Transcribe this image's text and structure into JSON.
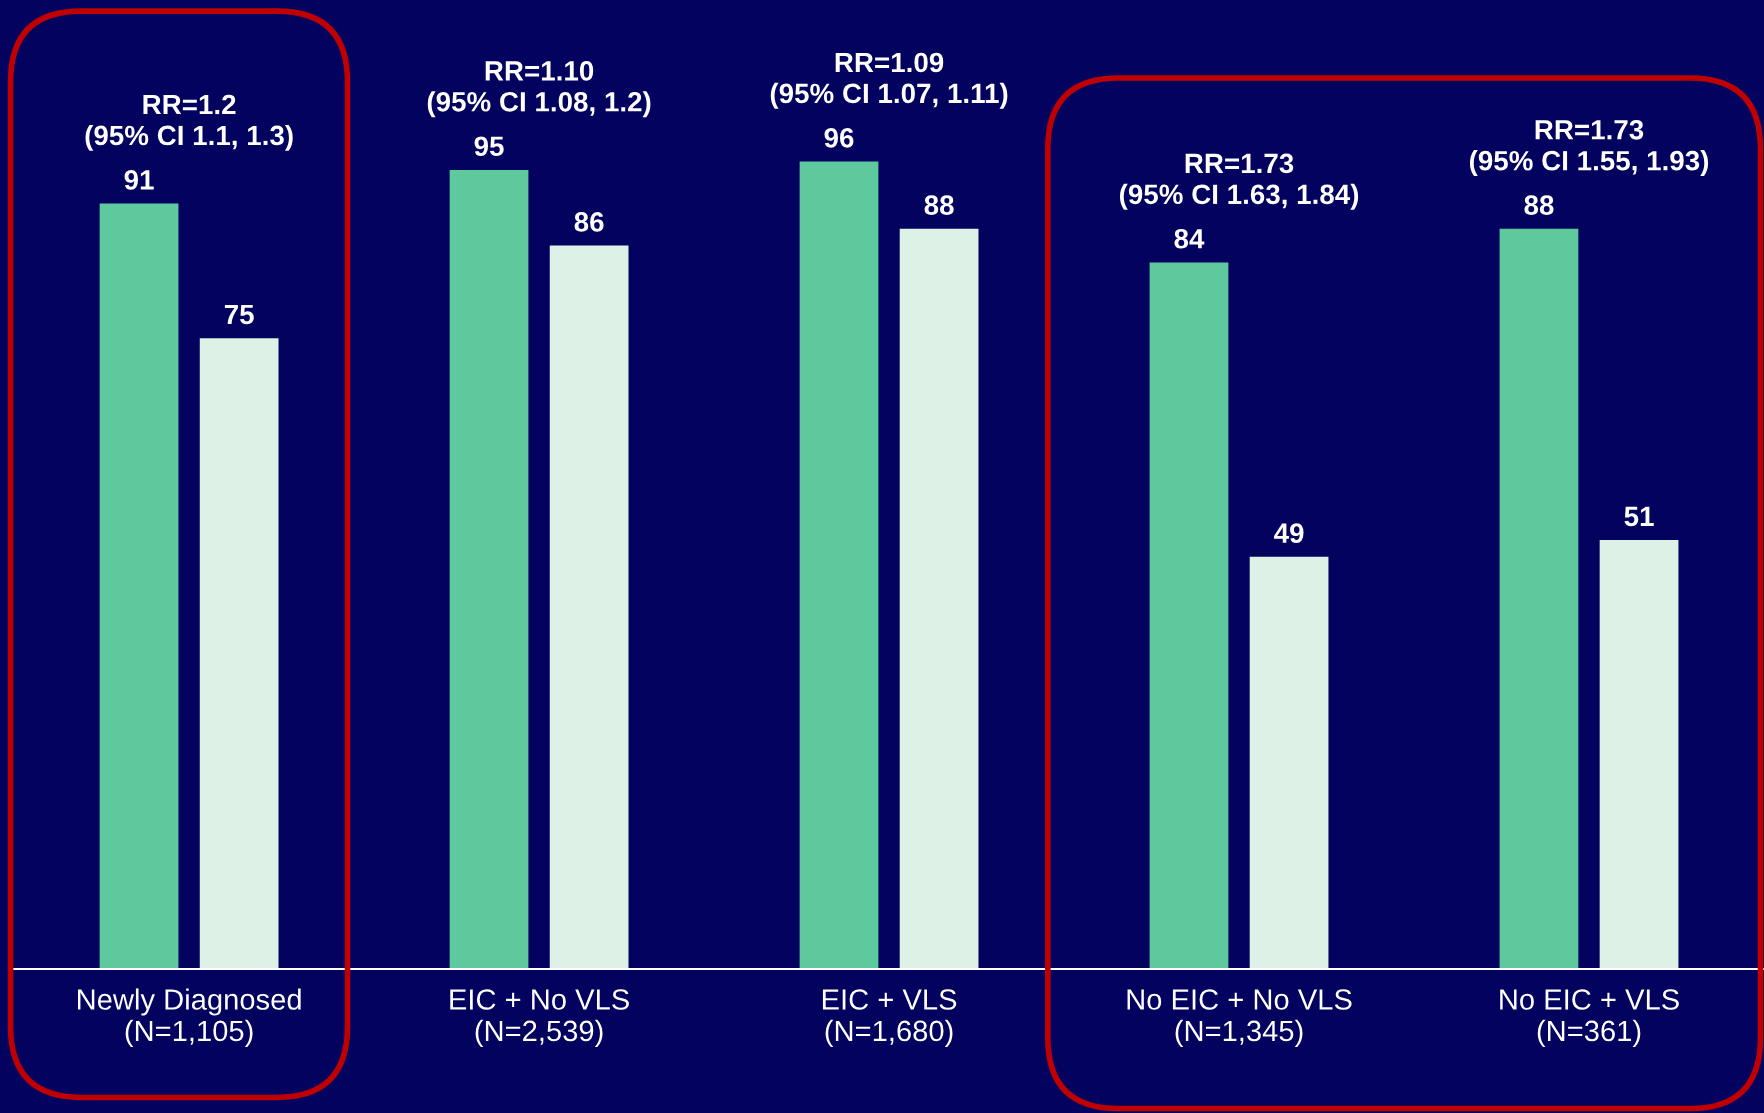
{
  "chart_data": {
    "type": "bar",
    "categories": [
      "Newly Diagnosed\n(N=1,105)",
      "EIC + No VLS\n(N=2,539)",
      "EIC + VLS\n(N=1,680)",
      "No EIC + No VLS\n(N=1,345)",
      "No EIC + VLS\n(N=361)"
    ],
    "series": [
      {
        "color": "#5fc99e",
        "values": [
          91,
          95,
          96,
          84,
          88
        ]
      },
      {
        "color": "#ddf1e7",
        "values": [
          75,
          86,
          88,
          49,
          51
        ]
      }
    ],
    "data_labels": true,
    "annotations": [
      "RR=1.2\n(95% CI 1.1, 1.3)",
      "RR=1.10\n(95% CI 1.08, 1.2)",
      "RR=1.09\n(95% CI 1.07, 1.11)",
      "RR=1.73\n(95% CI 1.63, 1.84)",
      "RR=1.73\n(95% CI 1.55, 1.93)"
    ],
    "grid": false,
    "legend": false
  }
}
